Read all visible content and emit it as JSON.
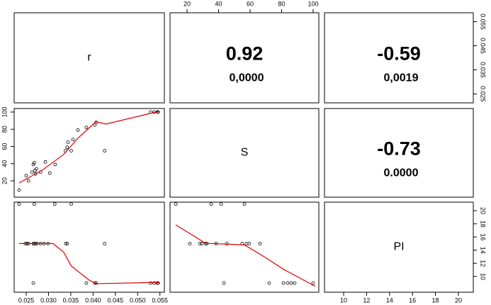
{
  "variables": [
    "r",
    "S",
    "PI"
  ],
  "correlations": [
    {
      "value": 0.92,
      "p": "0,0000"
    },
    {
      "value": -0.59,
      "p": "0,0019"
    },
    {
      "value": -0.73,
      "p": "0.0000"
    }
  ],
  "outer_axes": [
    {
      "lim": [
        9.2,
        103.6
      ],
      "ticks": [
        20,
        40,
        60,
        80,
        100
      ]
    },
    {
      "lim": [
        0.0213,
        0.0587
      ],
      "ticks": [
        0.025,
        0.035,
        0.045,
        0.055
      ]
    },
    {
      "lim": [
        7.6,
        21.3
      ],
      "ticks": [
        10,
        12,
        14,
        16,
        18,
        20
      ]
    },
    {
      "lim": [
        8.33,
        21.3
      ],
      "ticks": [
        10,
        12,
        14,
        16,
        18,
        20
      ]
    }
  ],
  "chart_data": [
    {
      "type": "scatter",
      "xlim": [
        0.0223,
        0.056
      ],
      "ylim": [
        1,
        104.1
      ],
      "yticks": [
        20,
        40,
        60,
        80,
        100
      ],
      "x": [
        0.0234,
        0.025,
        0.0255,
        0.0263,
        0.0266,
        0.0268,
        0.027,
        0.0271,
        0.0273,
        0.0282,
        0.0293,
        0.0303,
        0.0315,
        0.0338,
        0.0342,
        0.0344,
        0.0351,
        0.0355,
        0.0366,
        0.0385,
        0.0404,
        0.0407,
        0.0426,
        0.0529,
        0.0537,
        0.0544,
        0.0546
      ],
      "y": [
        9.3,
        26,
        20,
        30,
        39,
        41,
        32,
        28,
        34,
        30,
        42,
        29,
        39,
        55,
        59,
        65,
        55,
        68,
        79,
        82,
        85,
        88,
        55,
        100,
        100,
        100,
        100
      ],
      "fit": {
        "color": "#e00000",
        "x": [
          0.0234,
          0.0286,
          0.0334,
          0.0366,
          0.0406,
          0.0429,
          0.0548
        ],
        "y": [
          17.5,
          32.4,
          50.6,
          69.6,
          88.6,
          86.1,
          100.8
        ]
      }
    },
    {
      "type": "scatter",
      "xlim": [
        0.0223,
        0.056
      ],
      "ylim": [
        7.6,
        21.3
      ],
      "xticks": [
        0.025,
        {
          "value": 0.03,
          "label": "0.030"
        },
        0.035,
        {
          "value": 0.04,
          "label": "0.040"
        },
        0.045,
        {
          "value": 0.05,
          "label": "0.050"
        },
        0.055
      ],
      "x": [
        0.0234,
        0.0268,
        0.0314,
        0.0351,
        0.0248,
        0.0252,
        0.0255,
        0.0266,
        0.0268,
        0.0271,
        0.0274,
        0.0282,
        0.029,
        0.0299,
        0.0339,
        0.0342,
        0.0426,
        0.0266,
        0.0385,
        0.0404,
        0.0407,
        0.0529,
        0.0537,
        0.0544,
        0.0546
      ],
      "y": [
        21,
        21,
        21,
        21,
        15,
        15,
        15,
        15,
        15,
        15,
        15,
        15,
        15,
        15,
        15,
        15,
        15,
        9,
        9,
        9,
        9,
        9,
        9,
        9,
        9
      ],
      "fit": {
        "color": "#e00000",
        "x": [
          0.0234,
          0.031,
          0.0334,
          0.0351,
          0.039,
          0.0406,
          0.0548
        ],
        "y": [
          15,
          15,
          13.7,
          11.6,
          9.5,
          8.9,
          9.1
        ]
      }
    },
    {
      "type": "scatter",
      "xlim": [
        9.2,
        103.6
      ],
      "ylim": [
        7.6,
        21.3
      ],
      "x": [
        12.8,
        35.3,
        41.6,
        56.4,
        21.8,
        28.1,
        29.4,
        31.7,
        32.6,
        38.4,
        45.2,
        55,
        57.7,
        59.5,
        66.3,
        43.4,
        72.1,
        81.1,
        83.8,
        86.1,
        88.3,
        100
      ],
      "y": [
        21,
        21,
        21,
        21,
        15,
        15,
        15,
        15,
        15,
        15,
        15,
        15,
        15,
        15,
        15,
        9,
        9,
        9,
        9,
        9,
        9,
        9
      ],
      "fit": {
        "color": "#e00000",
        "x": [
          12.8,
          31.7,
          56.4,
          67.6,
          81.1,
          101.3
        ],
        "y": [
          17.85,
          15.05,
          14.8,
          13.2,
          11.1,
          8.5
        ]
      }
    }
  ]
}
